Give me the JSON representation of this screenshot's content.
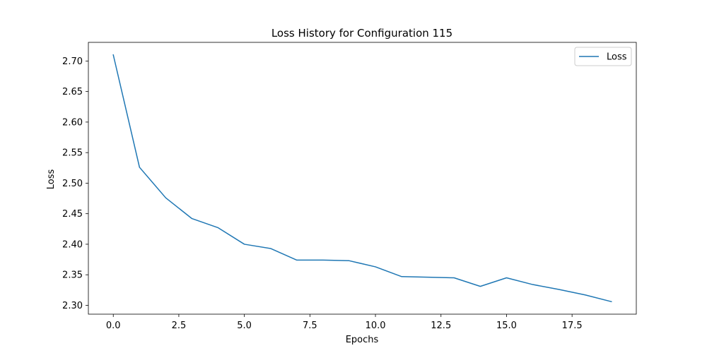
{
  "chart_data": {
    "type": "line",
    "title": "Loss History for Configuration 115",
    "xlabel": "Epochs",
    "ylabel": "Loss",
    "xlim": [
      -0.95,
      19.95
    ],
    "ylim": [
      2.2855,
      2.7305
    ],
    "xticks": [
      0.0,
      2.5,
      5.0,
      7.5,
      10.0,
      12.5,
      15.0,
      17.5
    ],
    "xtick_labels": [
      "0.0",
      "2.5",
      "5.0",
      "7.5",
      "10.0",
      "12.5",
      "15.0",
      "17.5"
    ],
    "yticks": [
      2.3,
      2.35,
      2.4,
      2.45,
      2.5,
      2.55,
      2.6,
      2.65,
      2.7
    ],
    "ytick_labels": [
      "2.30",
      "2.35",
      "2.40",
      "2.45",
      "2.50",
      "2.55",
      "2.60",
      "2.65",
      "2.70"
    ],
    "grid": false,
    "legend_position": "top-right",
    "series": [
      {
        "name": "Loss",
        "color": "#1f77b4",
        "x": [
          0,
          1,
          2,
          3,
          4,
          5,
          6,
          7,
          8,
          9,
          10,
          11,
          12,
          13,
          14,
          15,
          16,
          17,
          18,
          19
        ],
        "values": [
          2.71,
          2.526,
          2.476,
          2.442,
          2.427,
          2.4,
          2.393,
          2.374,
          2.374,
          2.373,
          2.363,
          2.347,
          2.346,
          2.345,
          2.331,
          2.345,
          2.334,
          2.326,
          2.317,
          2.306
        ]
      }
    ]
  }
}
